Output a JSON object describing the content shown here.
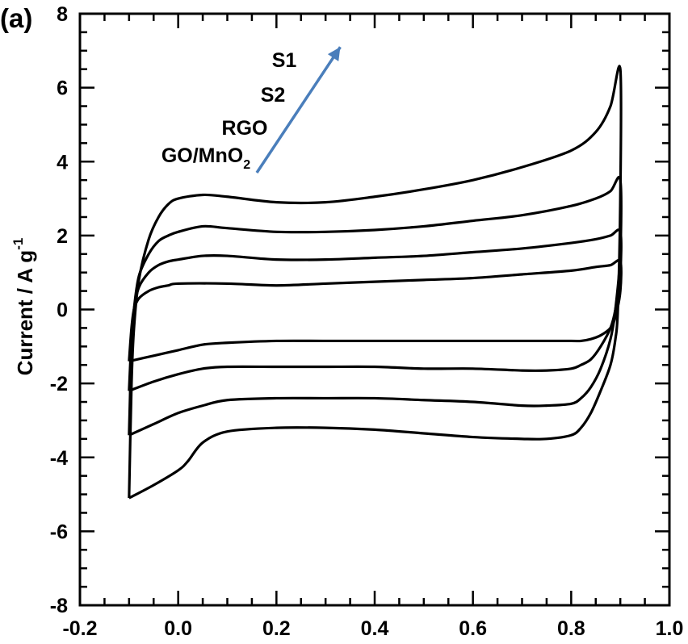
{
  "panel_label": "(a)",
  "chart_data": {
    "type": "line",
    "title": "",
    "xlabel": "",
    "ylabel": "Current / A g",
    "ylabel_superscript": "-1",
    "xlim": [
      -0.2,
      1.0
    ],
    "ylim": [
      -8,
      8
    ],
    "x_ticks": [
      "-0.2",
      "0.0",
      "0.2",
      "0.4",
      "0.6",
      "0.8",
      "1.0"
    ],
    "y_ticks": [
      "8",
      "6",
      "4",
      "2",
      "0",
      "-2",
      "-4",
      "-6",
      "-8"
    ],
    "grid": false,
    "annotation": {
      "labels": [
        "S1",
        "S2",
        "RGO",
        "GO/MnO"
      ],
      "last_label_subscript": "2",
      "arrow_color": "#4a7ebb",
      "arrow_from": [
        0.16,
        3.7
      ],
      "arrow_to": [
        0.33,
        7.1
      ]
    },
    "series": [
      {
        "curve": [
          [
            -0.1,
            -5.1
          ],
          [
            -0.095,
            -2.0
          ],
          [
            -0.09,
            -0.5
          ],
          [
            -0.08,
            0.8
          ],
          [
            -0.06,
            1.9
          ],
          [
            -0.04,
            2.5
          ],
          [
            -0.02,
            2.85
          ],
          [
            0.0,
            3.0
          ],
          [
            0.05,
            3.1
          ],
          [
            0.1,
            3.05
          ],
          [
            0.2,
            2.9
          ],
          [
            0.3,
            2.9
          ],
          [
            0.4,
            3.05
          ],
          [
            0.5,
            3.25
          ],
          [
            0.6,
            3.5
          ],
          [
            0.7,
            3.85
          ],
          [
            0.8,
            4.3
          ],
          [
            0.85,
            4.8
          ],
          [
            0.88,
            5.5
          ],
          [
            0.9,
            6.5
          ],
          [
            0.9,
            3.0
          ],
          [
            0.895,
            0.0
          ],
          [
            0.89,
            -0.8
          ],
          [
            0.88,
            -1.5
          ],
          [
            0.86,
            -2.2
          ],
          [
            0.84,
            -2.8
          ],
          [
            0.82,
            -3.2
          ],
          [
            0.8,
            -3.4
          ],
          [
            0.75,
            -3.5
          ],
          [
            0.7,
            -3.5
          ],
          [
            0.6,
            -3.45
          ],
          [
            0.5,
            -3.35
          ],
          [
            0.4,
            -3.25
          ],
          [
            0.3,
            -3.2
          ],
          [
            0.2,
            -3.2
          ],
          [
            0.1,
            -3.3
          ],
          [
            0.05,
            -3.6
          ],
          [
            0.02,
            -4.1
          ],
          [
            0.0,
            -4.35
          ],
          [
            -0.05,
            -4.75
          ],
          [
            -0.1,
            -5.1
          ]
        ]
      },
      {
        "curve": [
          [
            -0.1,
            -3.4
          ],
          [
            -0.095,
            -1.0
          ],
          [
            -0.09,
            0.0
          ],
          [
            -0.08,
            0.9
          ],
          [
            -0.06,
            1.5
          ],
          [
            -0.04,
            1.85
          ],
          [
            -0.02,
            2.0
          ],
          [
            0.0,
            2.1
          ],
          [
            0.05,
            2.25
          ],
          [
            0.1,
            2.2
          ],
          [
            0.2,
            2.1
          ],
          [
            0.3,
            2.1
          ],
          [
            0.4,
            2.15
          ],
          [
            0.5,
            2.25
          ],
          [
            0.6,
            2.4
          ],
          [
            0.7,
            2.55
          ],
          [
            0.8,
            2.8
          ],
          [
            0.85,
            3.0
          ],
          [
            0.88,
            3.2
          ],
          [
            0.9,
            3.5
          ],
          [
            0.9,
            1.5
          ],
          [
            0.89,
            0.0
          ],
          [
            0.88,
            -0.8
          ],
          [
            0.86,
            -1.6
          ],
          [
            0.84,
            -2.1
          ],
          [
            0.82,
            -2.4
          ],
          [
            0.8,
            -2.55
          ],
          [
            0.75,
            -2.6
          ],
          [
            0.7,
            -2.6
          ],
          [
            0.6,
            -2.5
          ],
          [
            0.5,
            -2.45
          ],
          [
            0.4,
            -2.4
          ],
          [
            0.3,
            -2.4
          ],
          [
            0.2,
            -2.4
          ],
          [
            0.1,
            -2.45
          ],
          [
            0.05,
            -2.6
          ],
          [
            0.0,
            -2.8
          ],
          [
            -0.05,
            -3.1
          ],
          [
            -0.1,
            -3.4
          ]
        ]
      },
      {
        "curve": [
          [
            -0.1,
            -2.2
          ],
          [
            -0.095,
            -0.8
          ],
          [
            -0.09,
            0.0
          ],
          [
            -0.08,
            0.6
          ],
          [
            -0.06,
            1.0
          ],
          [
            -0.04,
            1.2
          ],
          [
            -0.02,
            1.3
          ],
          [
            0.0,
            1.35
          ],
          [
            0.05,
            1.45
          ],
          [
            0.1,
            1.45
          ],
          [
            0.2,
            1.35
          ],
          [
            0.3,
            1.35
          ],
          [
            0.4,
            1.4
          ],
          [
            0.5,
            1.45
          ],
          [
            0.6,
            1.55
          ],
          [
            0.7,
            1.65
          ],
          [
            0.8,
            1.8
          ],
          [
            0.85,
            1.9
          ],
          [
            0.88,
            2.0
          ],
          [
            0.9,
            2.1
          ],
          [
            0.9,
            1.0
          ],
          [
            0.89,
            0.0
          ],
          [
            0.88,
            -0.5
          ],
          [
            0.86,
            -1.0
          ],
          [
            0.84,
            -1.35
          ],
          [
            0.82,
            -1.5
          ],
          [
            0.8,
            -1.6
          ],
          [
            0.75,
            -1.65
          ],
          [
            0.7,
            -1.65
          ],
          [
            0.6,
            -1.6
          ],
          [
            0.5,
            -1.6
          ],
          [
            0.4,
            -1.55
          ],
          [
            0.3,
            -1.55
          ],
          [
            0.2,
            -1.55
          ],
          [
            0.1,
            -1.55
          ],
          [
            0.05,
            -1.6
          ],
          [
            0.0,
            -1.75
          ],
          [
            -0.05,
            -1.95
          ],
          [
            -0.1,
            -2.2
          ]
        ]
      },
      {
        "curve": [
          [
            -0.1,
            -1.4
          ],
          [
            -0.095,
            -0.5
          ],
          [
            -0.09,
            0.0
          ],
          [
            -0.08,
            0.3
          ],
          [
            -0.06,
            0.5
          ],
          [
            -0.04,
            0.6
          ],
          [
            -0.02,
            0.65
          ],
          [
            0.0,
            0.7
          ],
          [
            0.1,
            0.7
          ],
          [
            0.2,
            0.65
          ],
          [
            0.3,
            0.7
          ],
          [
            0.4,
            0.75
          ],
          [
            0.5,
            0.8
          ],
          [
            0.6,
            0.85
          ],
          [
            0.7,
            0.95
          ],
          [
            0.8,
            1.05
          ],
          [
            0.85,
            1.15
          ],
          [
            0.88,
            1.2
          ],
          [
            0.9,
            1.3
          ],
          [
            0.9,
            0.5
          ],
          [
            0.89,
            -0.2
          ],
          [
            0.88,
            -0.5
          ],
          [
            0.86,
            -0.7
          ],
          [
            0.84,
            -0.8
          ],
          [
            0.82,
            -0.85
          ],
          [
            0.8,
            -0.85
          ],
          [
            0.7,
            -0.85
          ],
          [
            0.6,
            -0.85
          ],
          [
            0.5,
            -0.85
          ],
          [
            0.4,
            -0.85
          ],
          [
            0.3,
            -0.85
          ],
          [
            0.2,
            -0.85
          ],
          [
            0.1,
            -0.9
          ],
          [
            0.05,
            -0.95
          ],
          [
            0.0,
            -1.1
          ],
          [
            -0.05,
            -1.25
          ],
          [
            -0.1,
            -1.4
          ]
        ]
      }
    ]
  }
}
